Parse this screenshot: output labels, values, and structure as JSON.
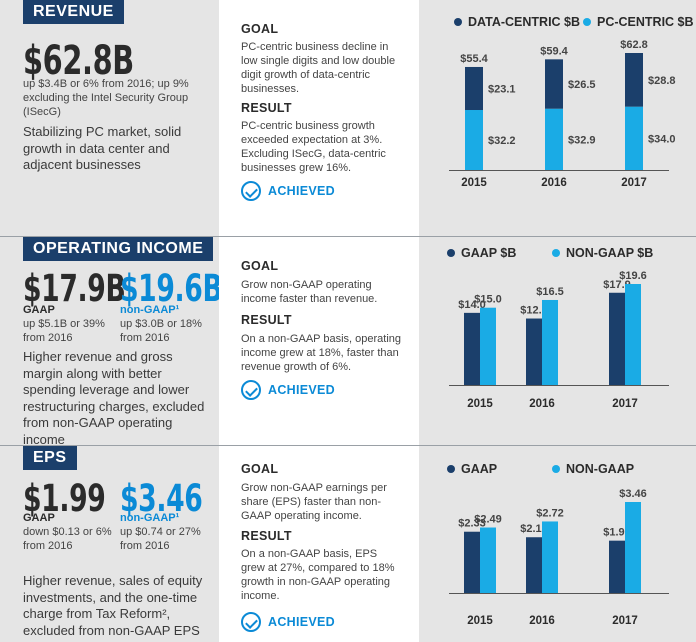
{
  "colors": {
    "navy": "#1b3f6b",
    "light_blue": "#1aabe5",
    "accent": "#0b8ad6"
  },
  "revenue": {
    "tag": "REVENUE",
    "value": "$62.8B",
    "note": "up $3.4B or 6% from 2016; up 9% excluding the Intel Security Group (ISecG)",
    "blurb": "Stabilizing PC market, solid growth in data center and adjacent businesses",
    "goal_heading": "GOAL",
    "goal": "PC-centric business decline in low single digits and low double digit growth of data-centric businesses.",
    "result_heading": "RESULT",
    "result": "PC-centric business growth exceeded expectation at 3%. Excluding ISecG, data-centric businesses grew 16%.",
    "achieved": "ACHIEVED"
  },
  "opinc": {
    "tag": "OPERATING INCOME",
    "gaap_value": "$17.9B",
    "gaap_label": "GAAP",
    "gaap_note": "up $5.1B or 39% from 2016",
    "nongaap_value": "$19.6B",
    "nongaap_label": "non-GAAP¹",
    "nongaap_note": "up $3.0B or 18% from 2016",
    "blurb": "Higher revenue and gross margin along with better spending leverage and lower restructuring charges, excluded from non-GAAP operating income",
    "goal_heading": "GOAL",
    "goal": "Grow non-GAAP operating income faster than revenue.",
    "result_heading": "RESULT",
    "result": "On a non-GAAP basis, operating income grew at 18%, faster than revenue growth of 6%.",
    "achieved": "ACHIEVED"
  },
  "eps": {
    "tag": "EPS",
    "gaap_value": "$1.99",
    "gaap_label": "GAAP",
    "gaap_note": "down $0.13 or 6% from 2016",
    "nongaap_value": "$3.46",
    "nongaap_label": "non-GAAP¹",
    "nongaap_note": "up $0.74 or 27% from 2016",
    "blurb": "Higher revenue, sales of equity investments, and the one-time charge from Tax Reform², excluded from non-GAAP EPS",
    "goal_heading": "GOAL",
    "goal": "Grow non-GAAP earnings per share (EPS) faster than non-GAAP operating income.",
    "result_heading": "RESULT",
    "result": "On a non-GAAP basis, EPS grew at 27%, compared to 18% growth in non-GAAP operating income.",
    "achieved": "ACHIEVED"
  },
  "chart_data": [
    {
      "type": "bar",
      "stacked": true,
      "categories": [
        "2015",
        "2016",
        "2017"
      ],
      "series": [
        {
          "name": "DATA-CENTRIC $B",
          "values": [
            23.1,
            26.5,
            28.8
          ],
          "labels": [
            "$23.1",
            "$26.5",
            "$28.8"
          ],
          "color": "#1b3f6b"
        },
        {
          "name": "PC-CENTRIC $B",
          "values": [
            32.2,
            32.9,
            34.0
          ],
          "labels": [
            "$32.2",
            "$32.9",
            "$34.0"
          ],
          "color": "#1aabe5"
        }
      ],
      "totals": [
        55.4,
        59.4,
        62.8
      ],
      "total_labels": [
        "$55.4",
        "$59.4",
        "$62.8"
      ],
      "ylim": [
        0,
        62.8
      ]
    },
    {
      "type": "bar",
      "categories": [
        "2015",
        "2016",
        "2017"
      ],
      "series": [
        {
          "name": "GAAP $B",
          "values": [
            14.0,
            12.9,
            17.9
          ],
          "labels": [
            "$14.0",
            "$12.9",
            "$17.9"
          ],
          "color": "#1b3f6b"
        },
        {
          "name": "NON-GAAP $B",
          "values": [
            15.0,
            16.5,
            19.6
          ],
          "labels": [
            "$15.0",
            "$16.5",
            "$19.6"
          ],
          "color": "#1aabe5"
        }
      ],
      "ylim": [
        0,
        19.6
      ]
    },
    {
      "type": "bar",
      "categories": [
        "2015",
        "2016",
        "2017"
      ],
      "series": [
        {
          "name": "GAAP",
          "values": [
            2.33,
            2.12,
            1.99
          ],
          "labels": [
            "$2.33",
            "$2.12",
            "$1.99"
          ],
          "color": "#1b3f6b"
        },
        {
          "name": "NON-GAAP",
          "values": [
            2.49,
            2.72,
            3.46
          ],
          "labels": [
            "$2.49",
            "$2.72",
            "$3.46"
          ],
          "color": "#1aabe5"
        }
      ],
      "ylim": [
        0,
        3.46
      ]
    }
  ]
}
